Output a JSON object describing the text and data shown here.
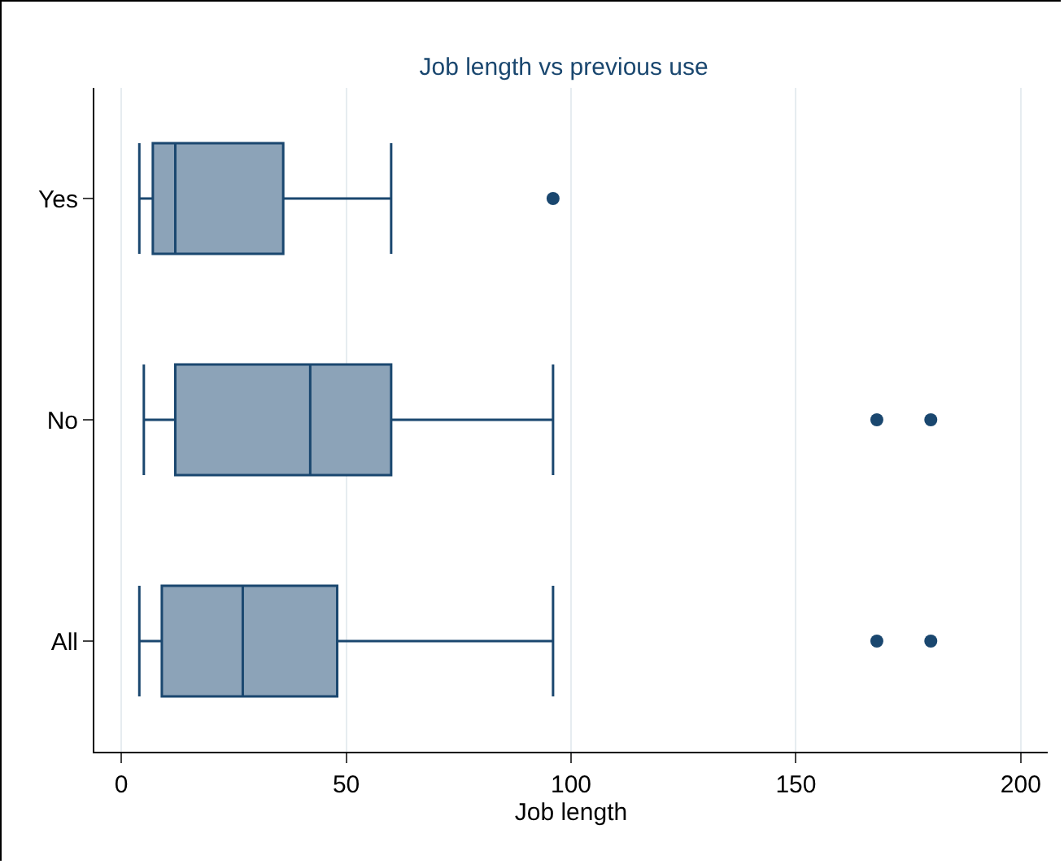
{
  "chart_data": {
    "type": "box",
    "title": "Job length vs previous use",
    "xlabel": "Job length",
    "orientation": "horizontal",
    "categories": [
      "Yes",
      "No",
      "All"
    ],
    "boxes": [
      {
        "low": 4,
        "q1": 7,
        "median": 12,
        "q3": 36,
        "high": 60,
        "outliers": [
          96
        ]
      },
      {
        "low": 5,
        "q1": 12,
        "median": 42,
        "q3": 60,
        "high": 96,
        "outliers": [
          168,
          180
        ]
      },
      {
        "low": 4,
        "q1": 9,
        "median": 27,
        "q3": 48,
        "high": 96,
        "outliers": [
          168,
          180
        ]
      }
    ],
    "color": "#1a476f",
    "colors": [
      "#8ca3b8",
      "#8ca3b8",
      "#8ca3b8"
    ],
    "xlim": [
      -6,
      206
    ],
    "xticks": [
      0,
      50,
      100,
      150,
      200
    ],
    "grid": "x",
    "marker": "circle"
  }
}
